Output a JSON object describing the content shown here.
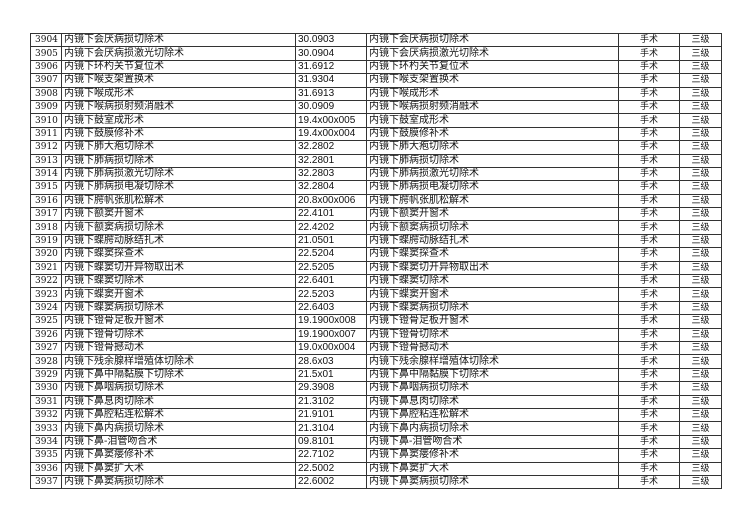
{
  "rows": [
    [
      "3904",
      "内镜下会厌病损切除术",
      "30.0903",
      "内镜下会厌病损切除术",
      "手术",
      "三级"
    ],
    [
      "3905",
      "内镜下会厌病损激光切除术",
      "30.0904",
      "内镜下会厌病损激光切除术",
      "手术",
      "三级"
    ],
    [
      "3906",
      "内镜下环杓关节复位术",
      "31.6912",
      "内镜下环杓关节复位术",
      "手术",
      "三级"
    ],
    [
      "3907",
      "内镜下喉支架置换术",
      "31.9304",
      "内镜下喉支架置换术",
      "手术",
      "三级"
    ],
    [
      "3908",
      "内镜下喉成形术",
      "31.6913",
      "内镜下喉成形术",
      "手术",
      "三级"
    ],
    [
      "3909",
      "内镜下喉病损射频消融术",
      "30.0909",
      "内镜下喉病损射频消融术",
      "手术",
      "三级"
    ],
    [
      "3910",
      "内镜下鼓室成形术",
      "19.4x00x005",
      "内镜下鼓室成形术",
      "手术",
      "三级"
    ],
    [
      "3911",
      "内镜下鼓膜修补术",
      "19.4x00x004",
      "内镜下鼓膜修补术",
      "手术",
      "三级"
    ],
    [
      "3912",
      "内镜下肺大疱切除术",
      "32.2802",
      "内镜下肺大疱切除术",
      "手术",
      "三级"
    ],
    [
      "3913",
      "内镜下肺病损切除术",
      "32.2801",
      "内镜下肺病损切除术",
      "手术",
      "三级"
    ],
    [
      "3914",
      "内镜下肺病损激光切除术",
      "32.2803",
      "内镜下肺病损激光切除术",
      "手术",
      "三级"
    ],
    [
      "3915",
      "内镜下肺病损电凝切除术",
      "32.2804",
      "内镜下肺病损电凝切除术",
      "手术",
      "三级"
    ],
    [
      "3916",
      "内镜下腭帆张肌松解术",
      "20.8x00x006",
      "内镜下腭帆张肌松解术",
      "手术",
      "三级"
    ],
    [
      "3917",
      "内镜下额窦开窗术",
      "22.4101",
      "内镜下额窦开窗术",
      "手术",
      "三级"
    ],
    [
      "3918",
      "内镜下额窦病损切除术",
      "22.4202",
      "内镜下额窦病损切除术",
      "手术",
      "三级"
    ],
    [
      "3919",
      "内镜下蝶腭动脉结扎术",
      "21.0501",
      "内镜下蝶腭动脉结扎术",
      "手术",
      "三级"
    ],
    [
      "3920",
      "内镜下蝶窦探查术",
      "22.5204",
      "内镜下蝶窦探查术",
      "手术",
      "三级"
    ],
    [
      "3921",
      "内镜下蝶窦切开异物取出术",
      "22.5205",
      "内镜下蝶窦切开异物取出术",
      "手术",
      "三级"
    ],
    [
      "3922",
      "内镜下蝶窦切除术",
      "22.6401",
      "内镜下蝶窦切除术",
      "手术",
      "三级"
    ],
    [
      "3923",
      "内镜下蝶窦开窗术",
      "22.5203",
      "内镜下蝶窦开窗术",
      "手术",
      "三级"
    ],
    [
      "3924",
      "内镜下蝶窦病损切除术",
      "22.6403",
      "内镜下蝶窦病损切除术",
      "手术",
      "三级"
    ],
    [
      "3925",
      "内镜下镫骨足板开窗术",
      "19.1900x008",
      "内镜下镫骨足板开窗术",
      "手术",
      "三级"
    ],
    [
      "3926",
      "内镜下镫骨切除术",
      "19.1900x007",
      "内镜下镫骨切除术",
      "手术",
      "三级"
    ],
    [
      "3927",
      "内镜下镫骨撼动术",
      "19.0x00x004",
      "内镜下镫骨撼动术",
      "手术",
      "三级"
    ],
    [
      "3928",
      "内镜下残余腺样增殖体切除术",
      "28.6x03",
      "内镜下残余腺样增殖体切除术",
      "手术",
      "三级"
    ],
    [
      "3929",
      "内镜下鼻中隔黏膜下切除术",
      "21.5x01",
      "内镜下鼻中隔黏膜下切除术",
      "手术",
      "三级"
    ],
    [
      "3930",
      "内镜下鼻咽病损切除术",
      "29.3908",
      "内镜下鼻咽病损切除术",
      "手术",
      "三级"
    ],
    [
      "3931",
      "内镜下鼻息肉切除术",
      "21.3102",
      "内镜下鼻息肉切除术",
      "手术",
      "三级"
    ],
    [
      "3932",
      "内镜下鼻腔粘连松解术",
      "21.9101",
      "内镜下鼻腔粘连松解术",
      "手术",
      "三级"
    ],
    [
      "3933",
      "内镜下鼻内病损切除术",
      "21.3104",
      "内镜下鼻内病损切除术",
      "手术",
      "三级"
    ],
    [
      "3934",
      "内镜下鼻-泪管吻合术",
      "09.8101",
      "内镜下鼻-泪管吻合术",
      "手术",
      "三级"
    ],
    [
      "3935",
      "内镜下鼻窦瘘修补术",
      "22.7102",
      "内镜下鼻窦瘘修补术",
      "手术",
      "三级"
    ],
    [
      "3936",
      "内镜下鼻窦扩大术",
      "22.5002",
      "内镜下鼻窦扩大术",
      "手术",
      "三级"
    ],
    [
      "3937",
      "内镜下鼻窦病损切除术",
      "22.6002",
      "内镜下鼻窦病损切除术",
      "手术",
      "三级"
    ]
  ]
}
